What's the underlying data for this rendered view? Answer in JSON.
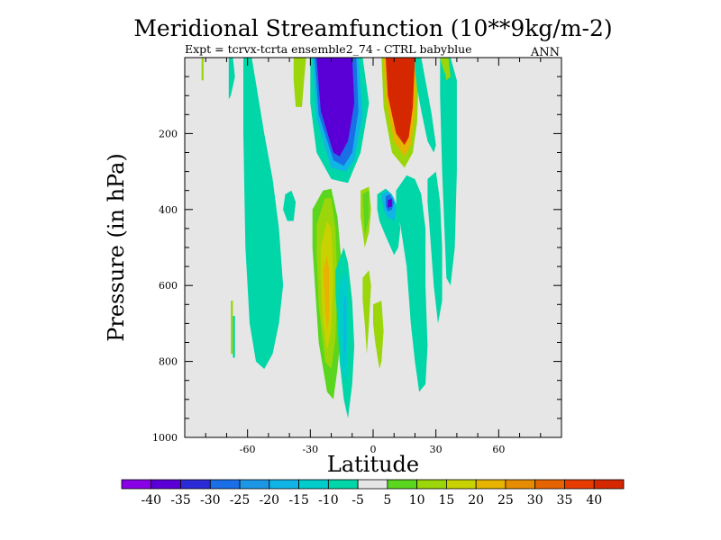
{
  "chart_data": {
    "type": "heatmap",
    "subtype": "filled-contour",
    "title": "Meridional Streamfunction (10**9kg/m-2)",
    "subtitle": "Expt = tcrvx-tcrta  ensemble2_74 - CTRL babyblue",
    "season": "ANN",
    "xlabel": "Latitude",
    "ylabel": "Pressure (in hPa)",
    "xlim": [
      -90,
      90
    ],
    "ylim": [
      1000,
      0
    ],
    "x_ticks": [
      -60,
      -30,
      0,
      30,
      60
    ],
    "x_tick_labels": [
      "-60",
      "-30",
      "0",
      "30",
      "60"
    ],
    "y_ticks": [
      200,
      400,
      600,
      800,
      1000
    ],
    "y_tick_labels": [
      "200",
      "400",
      "600",
      "800",
      "1000"
    ],
    "grid": false,
    "background_color": "#e6e6e6",
    "colorbar": {
      "placement": "bottom",
      "levels": [
        -40,
        -35,
        -30,
        -25,
        -20,
        -15,
        -10,
        -5,
        5,
        10,
        15,
        20,
        25,
        30,
        35,
        40
      ],
      "level_labels": [
        "-40",
        "-35",
        "-30",
        "-25",
        "-20",
        "-15",
        "-10",
        "-5",
        "5",
        "10",
        "15",
        "20",
        "25",
        "30",
        "35",
        "40"
      ],
      "colors": [
        "#8a00e6",
        "#5a00d6",
        "#2a2ad6",
        "#1a6ee6",
        "#1e96e6",
        "#10b4e6",
        "#00cccc",
        "#00d6a8",
        "#e6e6e6",
        "#5ad61e",
        "#9ad60a",
        "#c8d200",
        "#e6b400",
        "#e68c00",
        "#e66400",
        "#e63c00",
        "#d62800"
      ]
    },
    "regions": [
      {
        "value": 10,
        "lat": [
          -82,
          -81,
          -81,
          -82
        ],
        "p": [
          0,
          0,
          60,
          60
        ]
      },
      {
        "value": -10,
        "lat": [
          -69,
          -67,
          -66,
          -68,
          -69
        ],
        "p": [
          0,
          0,
          50,
          100,
          110
        ]
      },
      {
        "value": -10,
        "lat": [
          -67,
          -66,
          -66,
          -67
        ],
        "p": [
          680,
          680,
          790,
          790
        ]
      },
      {
        "value": 10,
        "lat": [
          -68,
          -67,
          -67,
          -68
        ],
        "p": [
          640,
          640,
          780,
          780
        ]
      },
      {
        "value": -10,
        "lat": [
          -62,
          -58,
          -55,
          -52,
          -48,
          -45,
          -43,
          -45,
          -48,
          -52,
          -56,
          -59,
          -61,
          -62
        ],
        "p": [
          0,
          0,
          100,
          200,
          320,
          450,
          600,
          700,
          780,
          820,
          800,
          700,
          500,
          200
        ]
      },
      {
        "value": -10,
        "lat": [
          -42,
          -39,
          -37,
          -38,
          -41,
          -43
        ],
        "p": [
          360,
          350,
          380,
          430,
          430,
          400
        ]
      },
      {
        "value": 10,
        "lat": [
          -38,
          -32,
          -33,
          -34,
          -37,
          -38
        ],
        "p": [
          0,
          0,
          60,
          130,
          130,
          60
        ]
      },
      {
        "value": -10,
        "lat": [
          -30,
          -5,
          -2,
          -6,
          -12,
          -20,
          -27,
          -30
        ],
        "p": [
          0,
          0,
          120,
          250,
          330,
          320,
          250,
          120
        ]
      },
      {
        "value": -20,
        "lat": [
          -29,
          -7,
          -5,
          -9,
          -13,
          -20,
          -27
        ],
        "p": [
          0,
          0,
          150,
          270,
          300,
          290,
          160
        ]
      },
      {
        "value": -30,
        "lat": [
          -28,
          -8,
          -7,
          -10,
          -14,
          -19,
          -26
        ],
        "p": [
          0,
          0,
          140,
          250,
          285,
          270,
          150
        ]
      },
      {
        "value": -40,
        "lat": [
          -27,
          -10,
          -9,
          -12,
          -16,
          -19,
          -25
        ],
        "p": [
          0,
          0,
          120,
          220,
          260,
          250,
          140
        ]
      },
      {
        "value": -5,
        "lat": [
          -30,
          -23,
          -18,
          -14,
          -11,
          -10,
          -11,
          -13,
          -16,
          -18,
          -21,
          -25,
          -28,
          -30
        ],
        "p": [
          400,
          340,
          330,
          400,
          500,
          600,
          700,
          820,
          920,
          950,
          900,
          780,
          600,
          480
        ]
      },
      {
        "value": 5,
        "lat": [
          -29,
          -24,
          -20,
          -17,
          -15,
          -15,
          -17,
          -19,
          -22,
          -26,
          -29
        ],
        "p": [
          400,
          350,
          345,
          420,
          550,
          700,
          820,
          900,
          880,
          750,
          500
        ]
      },
      {
        "value": 10,
        "lat": [
          -27,
          -23,
          -20,
          -18,
          -17,
          -18,
          -20,
          -23,
          -26,
          -27
        ],
        "p": [
          440,
          370,
          370,
          450,
          600,
          740,
          820,
          800,
          650,
          520
        ]
      },
      {
        "value": 15,
        "lat": [
          -25,
          -22,
          -20,
          -19,
          -20,
          -22,
          -24,
          -25
        ],
        "p": [
          500,
          430,
          450,
          580,
          720,
          770,
          700,
          580
        ]
      },
      {
        "value": 20,
        "lat": [
          -24,
          -22,
          -21,
          -21,
          -22,
          -23
        ],
        "p": [
          560,
          520,
          560,
          680,
          720,
          650
        ]
      },
      {
        "value": -10,
        "lat": [
          -18,
          -14,
          -12,
          -10,
          -9,
          -10,
          -12,
          -14,
          -16,
          -17,
          -18
        ],
        "p": [
          560,
          500,
          540,
          640,
          760,
          860,
          950,
          900,
          800,
          700,
          620
        ]
      },
      {
        "value": -15,
        "lat": [
          -16,
          -13,
          -12,
          -12,
          -13,
          -15,
          -16
        ],
        "p": [
          600,
          560,
          620,
          760,
          860,
          820,
          700
        ]
      },
      {
        "value": -20,
        "lat": [
          -14,
          -13,
          -13,
          -14
        ],
        "p": [
          640,
          620,
          760,
          800
        ]
      },
      {
        "value": 10,
        "lat": [
          -6,
          -2,
          -1,
          -2,
          -4,
          -6
        ],
        "p": [
          350,
          340,
          400,
          460,
          500,
          420
        ]
      },
      {
        "value": 5,
        "lat": [
          -5,
          -2,
          -2,
          -4
        ],
        "p": [
          360,
          350,
          420,
          470
        ]
      },
      {
        "value": 10,
        "lat": [
          0,
          4,
          5,
          4,
          3,
          1,
          0
        ],
        "p": [
          650,
          640,
          720,
          800,
          820,
          750,
          700
        ]
      },
      {
        "value": 10,
        "lat": [
          -5,
          -2,
          -1,
          -2,
          -3,
          -4,
          -5
        ],
        "p": [
          580,
          560,
          600,
          700,
          780,
          700,
          640
        ]
      },
      {
        "value": -5,
        "lat": [
          -1,
          5,
          10,
          13,
          15,
          16,
          15,
          14,
          12,
          8,
          4,
          1,
          -1
        ],
        "p": [
          360,
          330,
          360,
          420,
          500,
          600,
          680,
          700,
          680,
          560,
          480,
          440,
          400
        ]
      },
      {
        "value": -10,
        "lat": [
          2,
          6,
          9,
          12,
          13,
          12,
          10,
          6,
          3,
          2
        ],
        "p": [
          360,
          345,
          360,
          400,
          450,
          500,
          520,
          470,
          430,
          400
        ]
      },
      {
        "value": -20,
        "lat": [
          4,
          7,
          10,
          11,
          10,
          7,
          5
        ],
        "p": [
          360,
          350,
          370,
          400,
          430,
          420,
          400
        ]
      },
      {
        "value": -30,
        "lat": [
          6,
          8,
          10,
          9,
          7,
          6
        ],
        "p": [
          365,
          360,
          380,
          400,
          405,
          390
        ]
      },
      {
        "value": -40,
        "lat": [
          7,
          9,
          9,
          7
        ],
        "p": [
          375,
          372,
          392,
          395
        ]
      },
      {
        "value": -5,
        "lat": [
          3,
          14,
          22,
          24,
          21,
          15,
          8,
          4
        ],
        "p": [
          0,
          0,
          0,
          100,
          250,
          330,
          300,
          150
        ]
      },
      {
        "value": 10,
        "lat": [
          4,
          22,
          21,
          19,
          15,
          9,
          5
        ],
        "p": [
          0,
          0,
          170,
          250,
          290,
          250,
          130
        ]
      },
      {
        "value": 20,
        "lat": [
          5,
          21,
          20,
          18,
          15,
          10,
          6
        ],
        "p": [
          0,
          0,
          150,
          230,
          260,
          220,
          110
        ]
      },
      {
        "value": 40,
        "lat": [
          6,
          20,
          19,
          17,
          15,
          11,
          7
        ],
        "p": [
          0,
          0,
          130,
          210,
          230,
          200,
          100
        ]
      },
      {
        "value": 40,
        "lat": [
          7,
          19,
          18,
          16,
          15,
          12,
          8
        ],
        "p": [
          0,
          0,
          110,
          190,
          205,
          180,
          90
        ]
      },
      {
        "value": -10,
        "lat": [
          20,
          23,
          26,
          28,
          30,
          29,
          26,
          23,
          21,
          20
        ],
        "p": [
          0,
          0,
          90,
          150,
          230,
          250,
          220,
          140,
          80,
          30
        ]
      },
      {
        "value": -10,
        "lat": [
          11,
          16,
          20,
          23,
          25,
          25,
          26,
          25,
          22,
          20,
          18,
          16,
          13,
          11
        ],
        "p": [
          350,
          310,
          320,
          360,
          450,
          600,
          760,
          860,
          880,
          800,
          700,
          550,
          440,
          400
        ]
      },
      {
        "value": -10,
        "lat": [
          26,
          30,
          32,
          33,
          33,
          31,
          29,
          27,
          26
        ],
        "p": [
          320,
          300,
          380,
          500,
          640,
          700,
          600,
          450,
          380
        ]
      },
      {
        "value": -10,
        "lat": [
          32,
          37,
          40,
          40,
          39,
          37,
          35,
          33,
          32
        ],
        "p": [
          0,
          0,
          60,
          300,
          500,
          600,
          580,
          300,
          100
        ]
      },
      {
        "value": -10,
        "lat": [
          35,
          37,
          38,
          37,
          35
        ],
        "p": [
          0,
          0,
          80,
          100,
          60
        ]
      },
      {
        "value": 10,
        "lat": [
          32,
          34,
          35,
          34
        ],
        "p": [
          0,
          0,
          40,
          40
        ]
      },
      {
        "value": 10,
        "lat": [
          33,
          36,
          37,
          35
        ],
        "p": [
          0,
          0,
          50,
          60
        ]
      }
    ]
  }
}
